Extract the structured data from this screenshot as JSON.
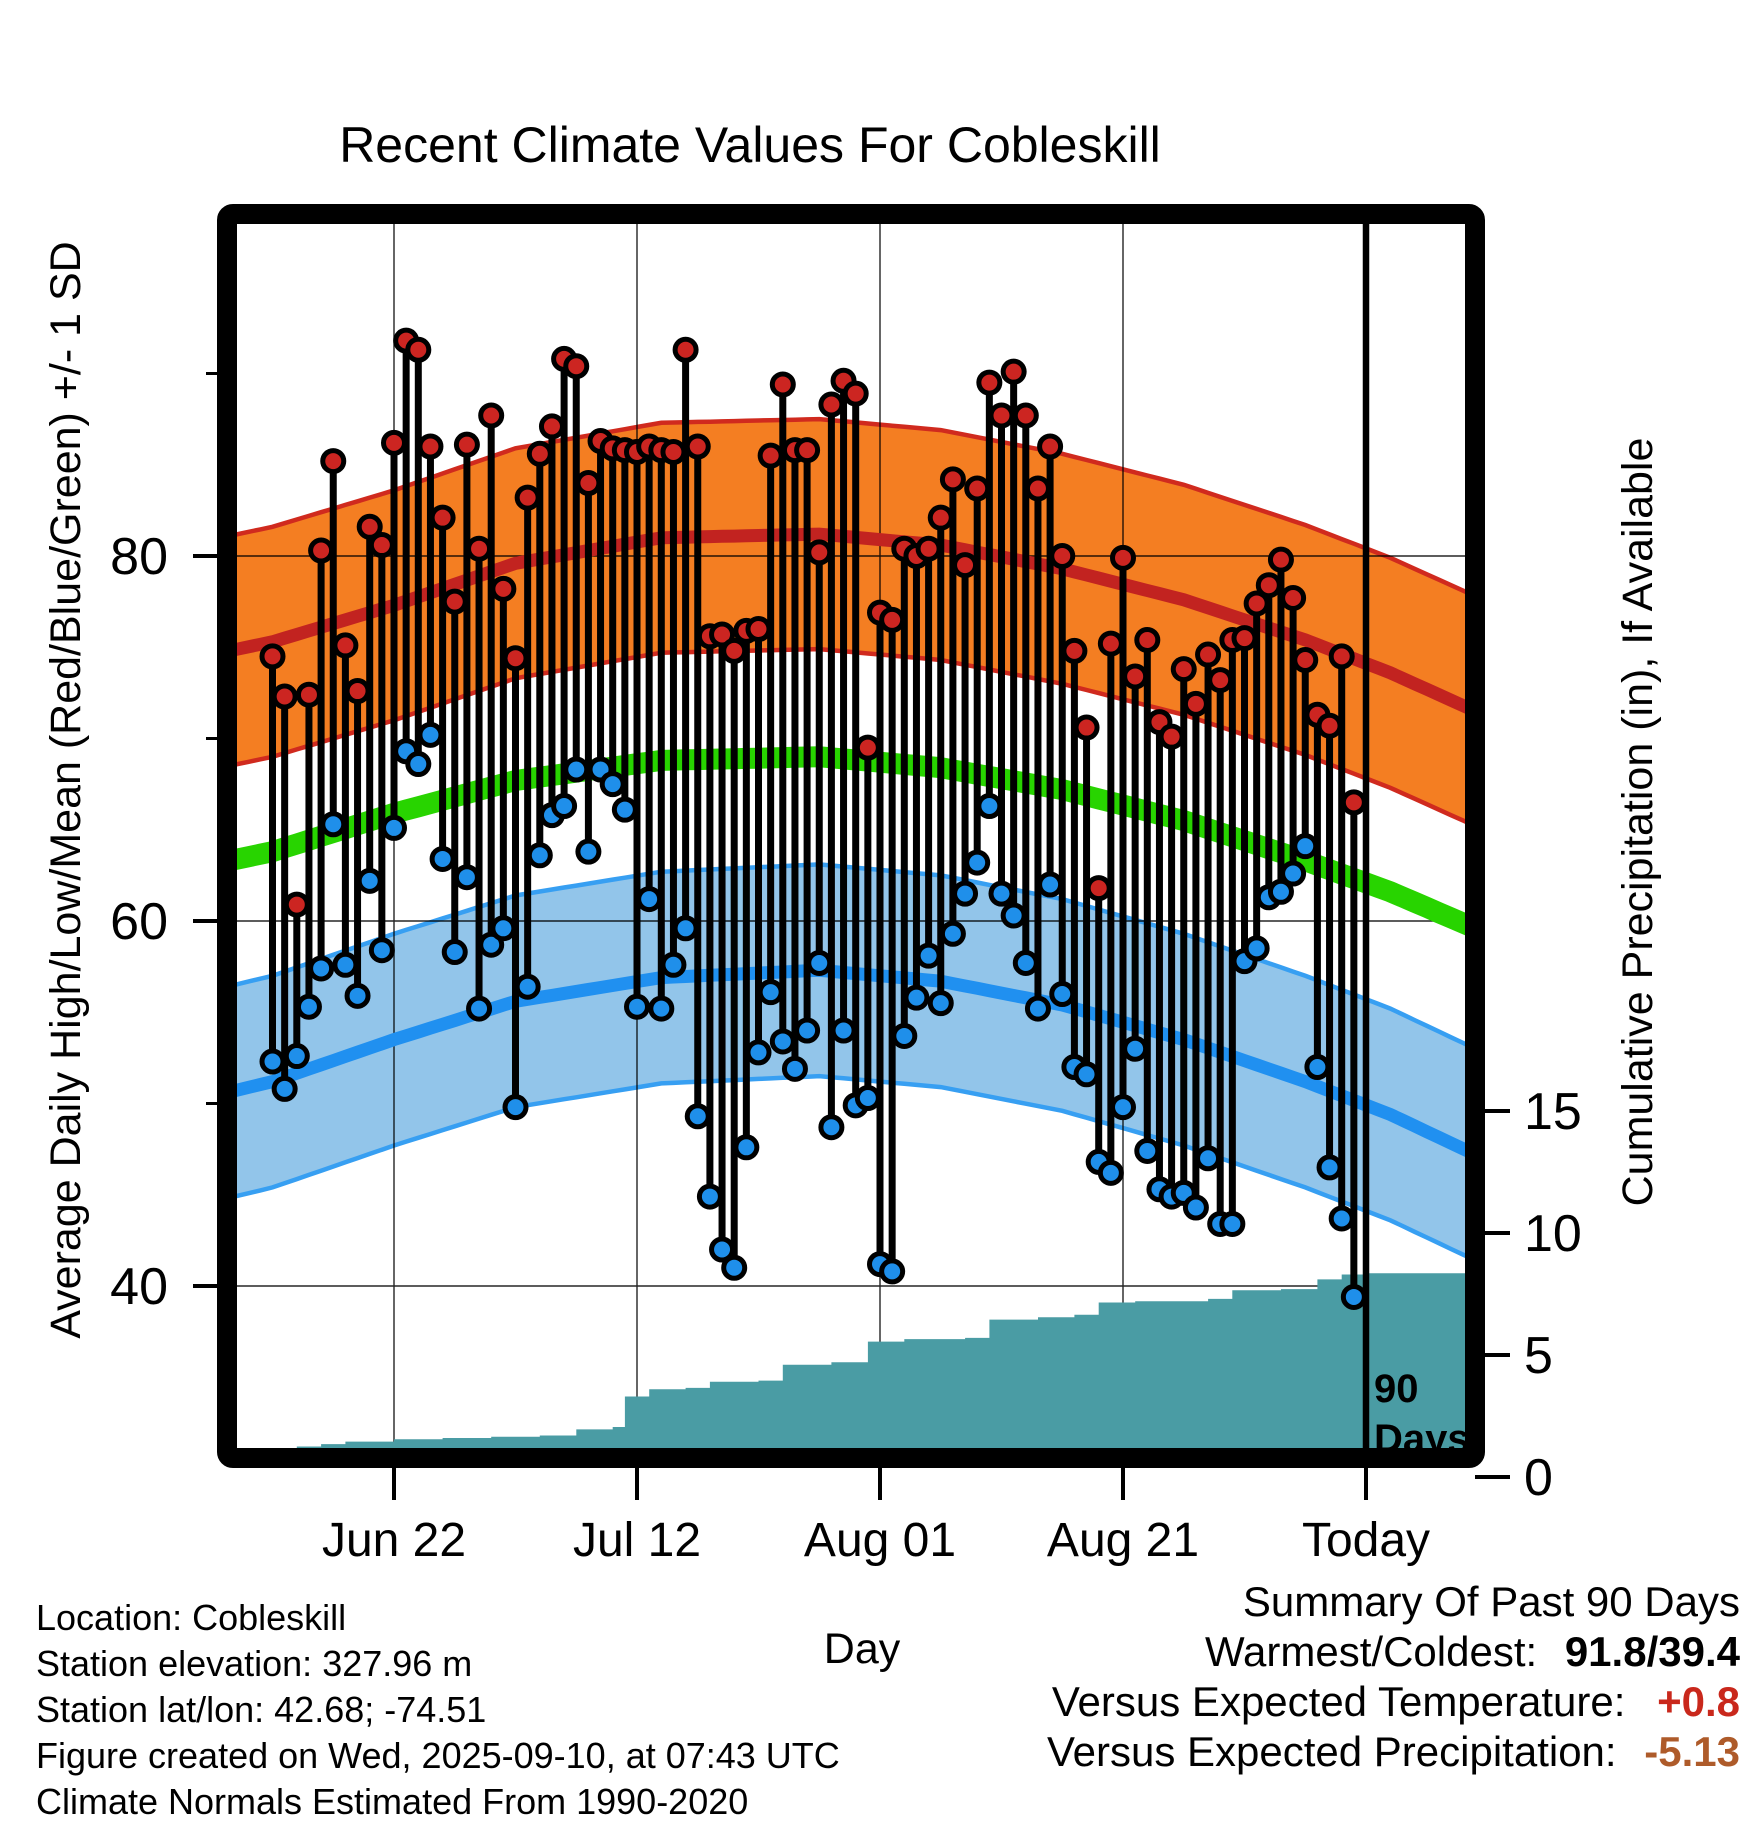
{
  "title": "Recent Climate Values For Cobleskill",
  "axes": {
    "y_left": {
      "label": "Average Daily High/Low/Mean (Red/Blue/Green) +/- 1 SD",
      "units": "degrees F",
      "range": [
        30.6,
        98.7
      ],
      "ticks": [
        {
          "value": 40,
          "label": "40",
          "major": true
        },
        {
          "value": 50,
          "label": "",
          "major": false
        },
        {
          "value": 60,
          "label": "60",
          "major": true
        },
        {
          "value": 70,
          "label": "",
          "major": false
        },
        {
          "value": 80,
          "label": "80",
          "major": true
        },
        {
          "value": 90,
          "label": "",
          "major": false
        }
      ]
    },
    "y_right": {
      "label": "Cumulative Precipitation (in), If Available",
      "units": "inches",
      "range": [
        0,
        51.7
      ],
      "ticks": [
        {
          "value": 0,
          "label": "0"
        },
        {
          "value": 5,
          "label": "5"
        },
        {
          "value": 10,
          "label": "10"
        },
        {
          "value": 15,
          "label": "15"
        }
      ]
    },
    "x": {
      "label": "Day",
      "ticks": [
        {
          "day": 10,
          "label": "Jun 22"
        },
        {
          "day": 30,
          "label": "Jul 12"
        },
        {
          "day": 50,
          "label": "Aug 01"
        },
        {
          "day": 70,
          "label": "Aug 21"
        },
        {
          "day": 90,
          "label": "Today"
        }
      ]
    }
  },
  "annotations": {
    "days90_line": [
      "90",
      "Days"
    ]
  },
  "footer": {
    "lines": [
      "Location: Cobleskill",
      "Station elevation: 327.96 m",
      "Station lat/lon: 42.68; -74.51",
      "Figure created on Wed, 2025-09-10, at 07:43 UTC",
      "Climate Normals Estimated From 1990-2020"
    ]
  },
  "summary": {
    "title": "Summary Of Past 90 Days",
    "warmest_label": "Warmest/Coldest:",
    "warmest_value": "91.8/39.4",
    "temp_label": "Versus Expected Temperature:",
    "temp_value": "+0.8",
    "precip_label": "Versus Expected Precipitation:",
    "precip_value": "-5.13"
  },
  "colors": {
    "high_band_fill": "#f47e22",
    "high_band_edge": "#d02a1e",
    "high_mean_line": "#c22320",
    "mean_line": "#28d400",
    "low_band_fill": "#92c5ea",
    "low_band_edge": "#379ff2",
    "low_mean_line": "#2090f0",
    "precip_fill": "#4a9ca4",
    "high_dot": "#cc2521",
    "low_dot": "#1f8fea",
    "stem": "#000000",
    "summary_temp_value": "#c9281c",
    "summary_precip_value": "#ae5b2a"
  },
  "chart_data": {
    "type": "combo: daily high/low temperature stems + normal bands (mean +/- 1 SD) + cumulative precipitation area",
    "x_axis_note": "90 days ending Today (2025-09-10); day index 0 = Jun 12",
    "today_day_index": 90,
    "temp_axis_labeled_ticks": [
      40,
      60,
      80
    ],
    "precip_axis_labeled_ticks": [
      0,
      5,
      10,
      15
    ],
    "daily": {
      "first_day": "Jun 12",
      "last_day": "Sep 9",
      "highs": [
        74.5,
        72.3,
        60.9,
        72.4,
        80.3,
        85.2,
        75.1,
        72.6,
        81.6,
        80.6,
        86.2,
        91.8,
        91.3,
        86.0,
        82.1,
        77.5,
        86.1,
        80.4,
        87.7,
        78.2,
        74.4,
        83.2,
        85.6,
        87.1,
        90.8,
        90.4,
        84.0,
        86.3,
        85.9,
        85.8,
        85.7,
        86.0,
        85.8,
        85.7,
        91.3,
        86.0,
        75.6,
        75.7,
        74.8,
        75.9,
        76.0,
        85.5,
        89.4,
        85.8,
        85.8,
        80.2,
        88.3,
        89.6,
        88.9,
        69.5,
        76.9,
        76.5,
        80.4,
        80.0,
        80.4,
        82.1,
        84.2,
        79.5,
        83.7,
        89.5,
        87.7,
        90.1,
        87.7,
        83.7,
        86.0,
        80.0,
        74.8,
        70.6,
        61.8,
        75.2,
        79.9,
        73.4,
        75.4,
        70.9,
        70.1,
        73.8,
        71.9,
        74.6,
        73.2,
        75.4,
        75.5,
        77.4,
        78.4,
        79.8,
        77.7,
        74.3,
        71.3,
        70.7,
        74.5,
        66.5
      ],
      "lows": [
        52.3,
        50.8,
        52.6,
        55.3,
        57.4,
        65.3,
        57.6,
        55.9,
        62.2,
        58.4,
        65.1,
        69.3,
        68.6,
        70.2,
        63.4,
        58.3,
        62.4,
        55.2,
        58.7,
        59.6,
        49.8,
        56.4,
        63.6,
        65.8,
        66.3,
        68.3,
        63.8,
        68.3,
        67.5,
        66.1,
        55.3,
        61.2,
        55.2,
        57.6,
        59.6,
        49.3,
        44.9,
        42.0,
        41.0,
        47.6,
        52.8,
        56.1,
        53.4,
        51.9,
        54.0,
        57.7,
        48.7,
        54.0,
        49.9,
        50.3,
        41.2,
        40.8,
        53.7,
        55.8,
        58.1,
        55.5,
        59.3,
        61.5,
        63.2,
        66.3,
        61.5,
        60.3,
        57.7,
        55.2,
        62.0,
        56.0,
        52.0,
        51.6,
        46.8,
        46.2,
        49.8,
        53.0,
        47.4,
        45.3,
        44.9,
        45.1,
        44.3,
        47.0,
        43.4,
        43.4,
        57.8,
        58.5,
        61.3,
        61.6,
        62.6,
        64.1,
        52.0,
        46.5,
        43.7,
        39.4
      ]
    },
    "normals": {
      "high_mean_points": [
        [
          -5,
          74.6
        ],
        [
          0,
          75.3
        ],
        [
          10,
          77.3
        ],
        [
          20,
          79.6
        ],
        [
          32,
          81.0
        ],
        [
          45,
          81.2
        ],
        [
          55,
          80.6
        ],
        [
          65,
          79.3
        ],
        [
          75,
          77.6
        ],
        [
          85,
          75.4
        ],
        [
          92,
          73.6
        ],
        [
          99,
          71.5
        ]
      ],
      "mean_points": [
        [
          -5,
          63.1
        ],
        [
          0,
          63.8
        ],
        [
          10,
          65.9
        ],
        [
          20,
          67.7
        ],
        [
          32,
          68.8
        ],
        [
          45,
          69.0
        ],
        [
          55,
          68.4
        ],
        [
          65,
          67.2
        ],
        [
          75,
          65.5
        ],
        [
          85,
          63.3
        ],
        [
          92,
          61.6
        ],
        [
          99,
          59.6
        ]
      ],
      "low_mean_points": [
        [
          -5,
          50.4
        ],
        [
          0,
          51.2
        ],
        [
          10,
          53.5
        ],
        [
          20,
          55.6
        ],
        [
          32,
          56.9
        ],
        [
          45,
          57.3
        ],
        [
          55,
          56.7
        ],
        [
          65,
          55.4
        ],
        [
          75,
          53.5
        ],
        [
          85,
          51.2
        ],
        [
          92,
          49.4
        ],
        [
          99,
          47.2
        ]
      ],
      "sd_high": 6.3,
      "sd_low": 5.8
    },
    "cumulative_precip_in_steps": [
      [
        0,
        0.4
      ],
      [
        1,
        0.9
      ],
      [
        2,
        1.25
      ],
      [
        4,
        1.35
      ],
      [
        6,
        1.45
      ],
      [
        10,
        1.55
      ],
      [
        14,
        1.6
      ],
      [
        18,
        1.65
      ],
      [
        22,
        1.7
      ],
      [
        25,
        1.95
      ],
      [
        28,
        2.05
      ],
      [
        29,
        3.3
      ],
      [
        31,
        3.6
      ],
      [
        34,
        3.65
      ],
      [
        36,
        3.9
      ],
      [
        40,
        3.95
      ],
      [
        42,
        4.6
      ],
      [
        46,
        4.7
      ],
      [
        49,
        5.55
      ],
      [
        52,
        5.65
      ],
      [
        57,
        5.7
      ],
      [
        59,
        6.45
      ],
      [
        63,
        6.55
      ],
      [
        66,
        6.65
      ],
      [
        68,
        7.15
      ],
      [
        71,
        7.2
      ],
      [
        77,
        7.3
      ],
      [
        79,
        7.65
      ],
      [
        83,
        7.7
      ],
      [
        86,
        8.1
      ],
      [
        88,
        8.3
      ],
      [
        90,
        8.35
      ],
      [
        99,
        8.35
      ]
    ]
  }
}
